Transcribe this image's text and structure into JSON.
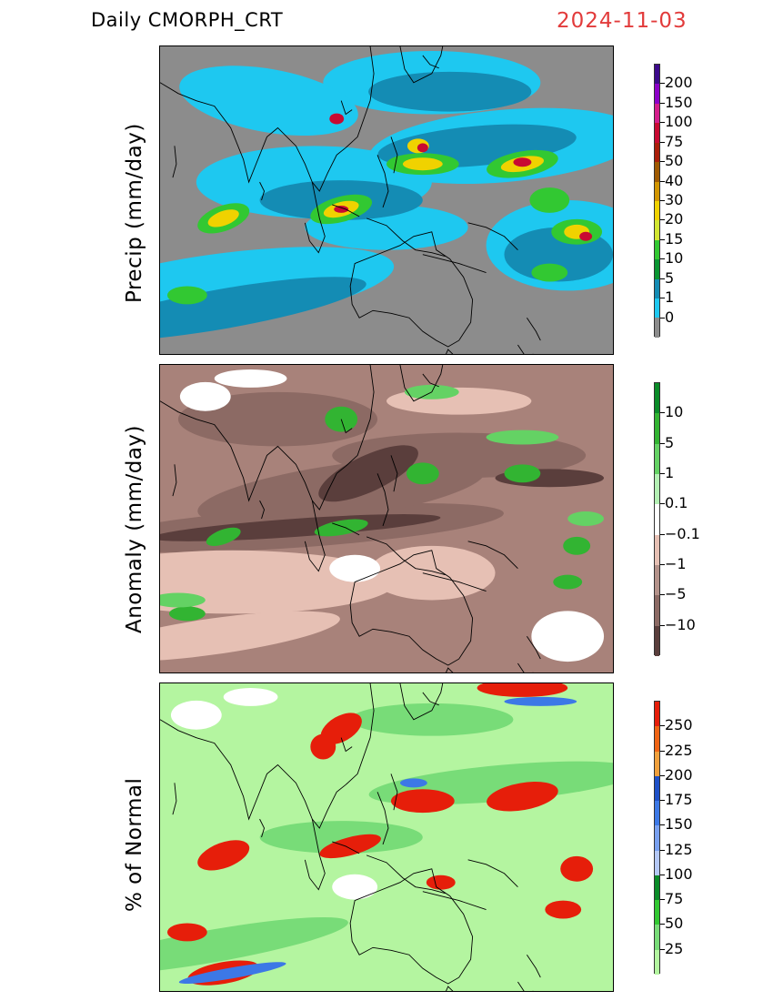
{
  "header": {
    "product": "Daily  CMORPH_CRT",
    "date": "2024-11-03"
  },
  "panels": [
    {
      "ylabel": "Precip  (mm/day)",
      "background": "#8c8c8c",
      "colorbar": {
        "labels": [
          "200",
          "150",
          "100",
          "75",
          "50",
          "40",
          "30",
          "20",
          "15",
          "10",
          "5",
          "1",
          "0"
        ],
        "colors": [
          "#3c0a8c",
          "#8c00c8",
          "#d41e8c",
          "#c80a32",
          "#aa1e0a",
          "#a05a00",
          "#d29600",
          "#f0d200",
          "#d2e632",
          "#32c832",
          "#0a9632",
          "#148cb4",
          "#1ec8f0",
          "#8c8c8c"
        ]
      }
    },
    {
      "ylabel": "Anomaly  (mm/day)",
      "background": "#a8827a",
      "colorbar": {
        "labels": [
          "10",
          "5",
          "1",
          "0.1",
          "−0.1",
          "−1",
          "−5",
          "−10"
        ],
        "colors": [
          "#0a8c28",
          "#32b432",
          "#64d264",
          "#b4f0b4",
          "#ffffff",
          "#e6c0b4",
          "#b4928a",
          "#8c6a64",
          "#5a3e3c"
        ]
      }
    },
    {
      "ylabel": "%  of  Normal",
      "background": "#b4f5a0",
      "colorbar": {
        "labels": [
          "250",
          "225",
          "200",
          "175",
          "150",
          "125",
          "100",
          "75",
          "50",
          "25"
        ],
        "colors": [
          "#e61e0a",
          "#f06414",
          "#f0a03c",
          "#1e50c8",
          "#3c78e6",
          "#78a0f0",
          "#b4c8f5",
          "#0a8c28",
          "#32c832",
          "#78dc78",
          "#b4f5a0"
        ]
      }
    }
  ]
}
